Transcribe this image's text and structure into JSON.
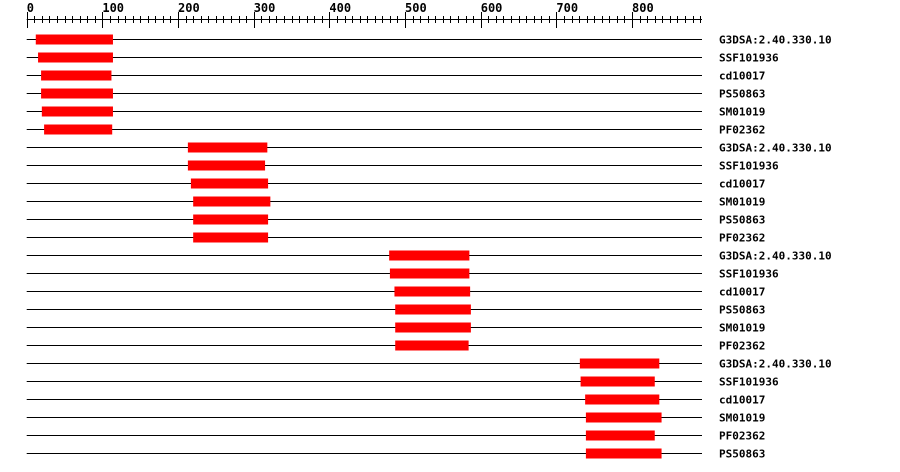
{
  "axis": {
    "min": 0,
    "max": 892,
    "major_step": 100,
    "minor_step": 10,
    "tick_labels": [
      "0",
      "100",
      "200",
      "300",
      "400",
      "500",
      "600",
      "700",
      "800"
    ]
  },
  "colors": {
    "domain_bar": "#ff0000",
    "line": "#000000"
  },
  "rows": [
    {
      "label": "G3DSA:2.40.330.10",
      "start": 12,
      "end": 114
    },
    {
      "label": "SSF101936",
      "start": 15,
      "end": 114
    },
    {
      "label": "cd10017",
      "start": 19,
      "end": 112
    },
    {
      "label": "PS50863",
      "start": 19,
      "end": 114
    },
    {
      "label": "SM01019",
      "start": 20,
      "end": 114
    },
    {
      "label": "PF02362",
      "start": 23,
      "end": 113
    },
    {
      "label": "G3DSA:2.40.330.10",
      "start": 213,
      "end": 318
    },
    {
      "label": "SSF101936",
      "start": 213,
      "end": 315
    },
    {
      "label": "cd10017",
      "start": 217,
      "end": 319
    },
    {
      "label": "SM01019",
      "start": 220,
      "end": 322
    },
    {
      "label": "PS50863",
      "start": 220,
      "end": 319
    },
    {
      "label": "PF02362",
      "start": 220,
      "end": 319
    },
    {
      "label": "G3DSA:2.40.330.10",
      "start": 479,
      "end": 585
    },
    {
      "label": "SSF101936",
      "start": 480,
      "end": 585
    },
    {
      "label": "cd10017",
      "start": 486,
      "end": 586
    },
    {
      "label": "PS50863",
      "start": 487,
      "end": 587
    },
    {
      "label": "SM01019",
      "start": 487,
      "end": 587
    },
    {
      "label": "PF02362",
      "start": 487,
      "end": 584
    },
    {
      "label": "G3DSA:2.40.330.10",
      "start": 731,
      "end": 836
    },
    {
      "label": "SSF101936",
      "start": 732,
      "end": 830
    },
    {
      "label": "cd10017",
      "start": 738,
      "end": 836
    },
    {
      "label": "SM01019",
      "start": 739,
      "end": 839
    },
    {
      "label": "PF02362",
      "start": 739,
      "end": 830
    },
    {
      "label": "PS50863",
      "start": 739,
      "end": 839
    }
  ]
}
